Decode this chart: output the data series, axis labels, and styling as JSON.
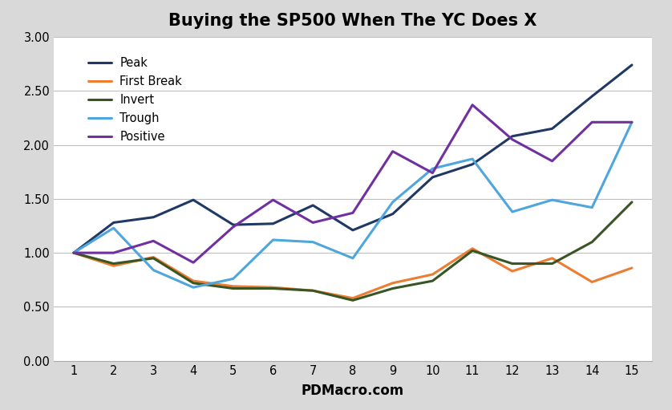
{
  "title": "Buying the SP500 When The YC Does X",
  "xlabel": "PDMacro.com",
  "x": [
    1,
    2,
    3,
    4,
    5,
    6,
    7,
    8,
    9,
    10,
    11,
    12,
    13,
    14,
    15
  ],
  "series": {
    "Peak": {
      "values": [
        1.0,
        1.28,
        1.33,
        1.49,
        1.26,
        1.27,
        1.44,
        1.21,
        1.36,
        1.7,
        1.82,
        2.08,
        2.15,
        2.45,
        2.74
      ],
      "color": "#1F3864",
      "linewidth": 2.2
    },
    "First Break": {
      "values": [
        1.0,
        0.88,
        0.96,
        0.74,
        0.69,
        0.68,
        0.65,
        0.58,
        0.72,
        0.8,
        1.04,
        0.83,
        0.95,
        0.73,
        0.86
      ],
      "color": "#ED7D31",
      "linewidth": 2.2
    },
    "Invert": {
      "values": [
        1.0,
        0.9,
        0.95,
        0.72,
        0.67,
        0.67,
        0.65,
        0.56,
        0.67,
        0.74,
        1.02,
        0.9,
        0.9,
        1.1,
        1.47
      ],
      "color": "#375623",
      "linewidth": 2.2
    },
    "Trough": {
      "values": [
        1.0,
        1.23,
        0.84,
        0.68,
        0.76,
        1.12,
        1.1,
        0.95,
        1.47,
        1.78,
        1.87,
        1.38,
        1.49,
        1.42,
        2.21
      ],
      "color": "#4EA6DC",
      "linewidth": 2.2
    },
    "Positive": {
      "values": [
        1.0,
        1.0,
        1.11,
        0.91,
        1.24,
        1.49,
        1.28,
        1.37,
        1.94,
        1.74,
        2.37,
        2.05,
        1.85,
        2.21,
        2.21
      ],
      "color": "#7030A0",
      "linewidth": 2.2
    }
  },
  "ylim": [
    0.0,
    3.0
  ],
  "yticks": [
    0.0,
    0.5,
    1.0,
    1.5,
    2.0,
    2.5,
    3.0
  ],
  "ytick_labels": [
    "0.00",
    "0.50",
    "1.00",
    "1.50",
    "2.00",
    "2.50",
    "3.00"
  ],
  "xlim": [
    0.5,
    15.5
  ],
  "xticks": [
    1,
    2,
    3,
    4,
    5,
    6,
    7,
    8,
    9,
    10,
    11,
    12,
    13,
    14,
    15
  ],
  "figure_background_color": "#D9D9D9",
  "plot_background_color": "#FFFFFF",
  "grid_color": "#BFBFBF",
  "legend_order": [
    "Peak",
    "First Break",
    "Invert",
    "Trough",
    "Positive"
  ],
  "title_fontsize": 15,
  "axis_label_fontsize": 12,
  "tick_fontsize": 10.5,
  "legend_fontsize": 10.5
}
